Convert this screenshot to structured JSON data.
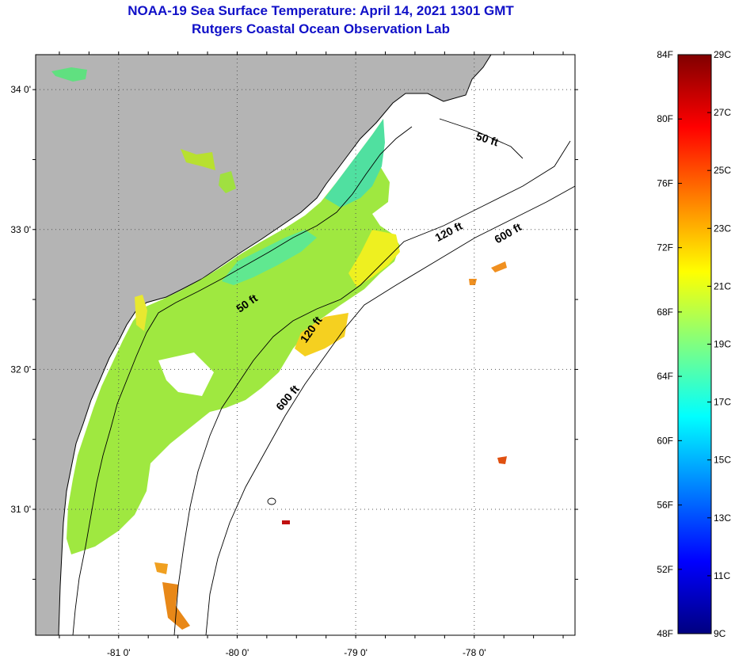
{
  "title_line1": "NOAA-19 Sea Surface Temperature:  April 14, 2021 1301 GMT",
  "title_line2": "Rutgers Coastal Ocean Observation Lab",
  "map": {
    "lon_range": [
      -81.7,
      -77.15
    ],
    "lat_range": [
      30.1,
      34.25
    ],
    "lat_ticks": [
      {
        "value": 34,
        "label": "34 0'"
      },
      {
        "value": 33,
        "label": "33 0'"
      },
      {
        "value": 32,
        "label": "32 0'"
      },
      {
        "value": 31,
        "label": "31 0'"
      }
    ],
    "lon_ticks": [
      {
        "value": -81,
        "label": "-81 0'"
      },
      {
        "value": -80,
        "label": "-80 0'"
      },
      {
        "value": -79,
        "label": "-79 0'"
      },
      {
        "value": -78,
        "label": "-78 0'"
      }
    ],
    "grid": "dotted",
    "land_color": "#b4b4b4",
    "isobath_labels": [
      {
        "text": "50 ft",
        "lon": -77.9,
        "lat": 33.62,
        "angle": 18
      },
      {
        "text": "120 ft",
        "lon": -78.2,
        "lat": 32.96,
        "angle": -28
      },
      {
        "text": "600 ft",
        "lon": -77.7,
        "lat": 32.95,
        "angle": -30
      },
      {
        "text": "50 ft",
        "lon": -79.9,
        "lat": 32.45,
        "angle": -35
      },
      {
        "text": "120 ft",
        "lon": -79.35,
        "lat": 32.27,
        "angle": -55
      },
      {
        "text": "600 ft",
        "lon": -79.55,
        "lat": 31.78,
        "angle": -50
      }
    ]
  },
  "colorbar": {
    "fahrenheit": [
      {
        "value": 84,
        "label": "84F"
      },
      {
        "value": 80,
        "label": "80F"
      },
      {
        "value": 76,
        "label": "76F"
      },
      {
        "value": 72,
        "label": "72F"
      },
      {
        "value": 68,
        "label": "68F"
      },
      {
        "value": 64,
        "label": "64F"
      },
      {
        "value": 60,
        "label": "60F"
      },
      {
        "value": 56,
        "label": "56F"
      },
      {
        "value": 52,
        "label": "52F"
      },
      {
        "value": 48,
        "label": "48F"
      }
    ],
    "celsius": [
      {
        "value": 29,
        "label": "29C"
      },
      {
        "value": 27,
        "label": "27C"
      },
      {
        "value": 25,
        "label": "25C"
      },
      {
        "value": 23,
        "label": "23C"
      },
      {
        "value": 21,
        "label": "21C"
      },
      {
        "value": 19,
        "label": "19C"
      },
      {
        "value": 17,
        "label": "17C"
      },
      {
        "value": 15,
        "label": "15C"
      },
      {
        "value": 13,
        "label": "13C"
      },
      {
        "value": 11,
        "label": "11C"
      },
      {
        "value": 9,
        "label": "9C"
      }
    ],
    "f_range": [
      48,
      84
    ],
    "c_range": [
      9,
      29
    ],
    "colors": [
      "#000080",
      "#0000ff",
      "#0080ff",
      "#00ffff",
      "#80ff80",
      "#ffff00",
      "#ff8000",
      "#ff0000",
      "#800000"
    ]
  }
}
